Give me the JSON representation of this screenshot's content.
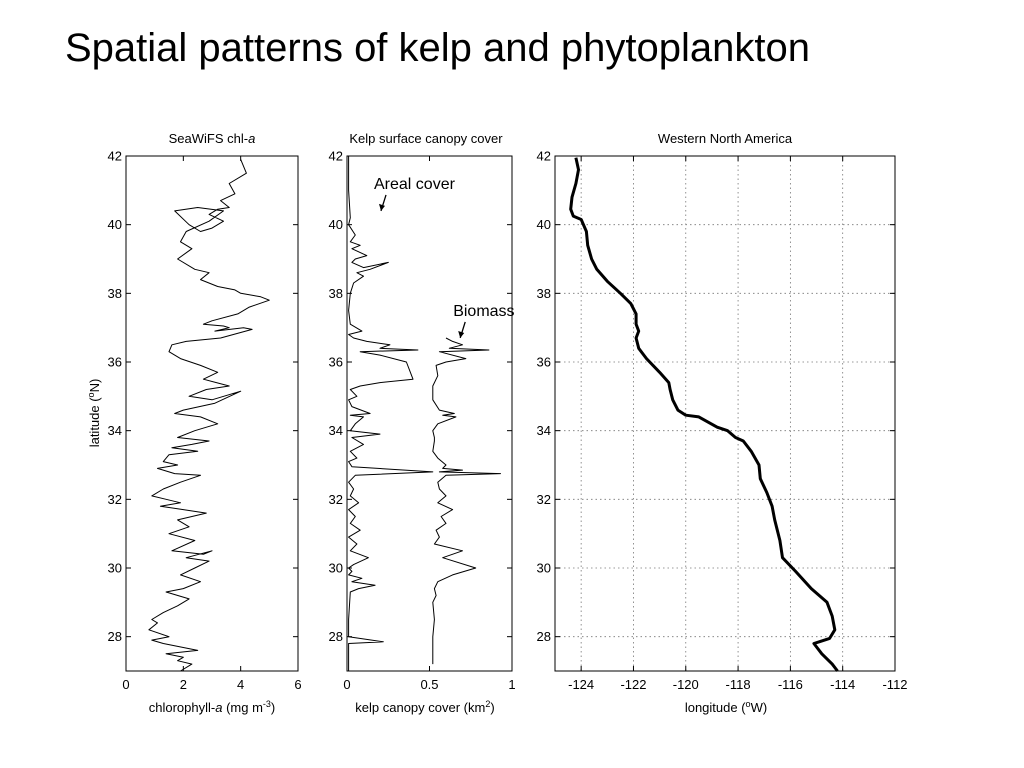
{
  "slide_title": "Spatial patterns of kelp and phytoplankton",
  "chart_data": [
    {
      "type": "line",
      "title": "SeaWiFS chl-",
      "title_italic": "a",
      "xlabel": "chlorophyll-",
      "xlabel_italic": "a",
      "xlabel_unit_pre": " (mg m",
      "xlabel_unit_sup": "-3",
      "xlabel_unit_post": ")",
      "ylabel": "latitude (",
      "ylabel_sup": "o",
      "ylabel_post": "N)",
      "xlim": [
        0,
        6
      ],
      "ylim": [
        27,
        42
      ],
      "xticks": [
        "0",
        "2",
        "4",
        "6"
      ],
      "yticks": [
        "28",
        "30",
        "32",
        "34",
        "36",
        "38",
        "40",
        "42"
      ],
      "grid": false,
      "series": [
        {
          "x": [
            4.0,
            4.2,
            3.6,
            3.8,
            3.3,
            3.6,
            3.2,
            2.9,
            3.4,
            3.0,
            2.6,
            2.2,
            1.7,
            2.5,
            3.4,
            2.9,
            2.1,
            1.9,
            2.3,
            1.8,
            2.4,
            2.9,
            2.6,
            3.2,
            3.8,
            4.0,
            4.7,
            5.0,
            4.3,
            3.9,
            3.0,
            2.7,
            3.4,
            3.6,
            3.1,
            4.1,
            4.4,
            3.3,
            2.1,
            1.6,
            1.5,
            1.9,
            2.6,
            3.2,
            2.7,
            3.6,
            2.8,
            2.2,
            3.0,
            4.0,
            3.1,
            2.0,
            1.7,
            2.6,
            3.2,
            2.4,
            1.8,
            2.9,
            2.3,
            1.6,
            2.5,
            1.5,
            1.3,
            1.8,
            1.1,
            1.7,
            2.6,
            1.9,
            1.3,
            0.9,
            1.4,
            1.9,
            1.2,
            2.0,
            2.8,
            1.8,
            2.2,
            1.5,
            2.4,
            1.6,
            2.7,
            3.0,
            2.1,
            2.9,
            2.4,
            1.9,
            2.6,
            2.0,
            1.4,
            2.2,
            1.8,
            1.3,
            0.9,
            1.1,
            0.8,
            1.5,
            0.9,
            1.3,
            2.5,
            1.4,
            2.0,
            1.8,
            2.3,
            1.9
          ],
          "y": [
            41.9,
            41.5,
            41.2,
            40.9,
            40.7,
            40.5,
            40.45,
            40.3,
            40.1,
            39.9,
            39.8,
            40.0,
            40.4,
            40.5,
            40.4,
            40.1,
            39.8,
            39.5,
            39.3,
            39.0,
            38.7,
            38.6,
            38.4,
            38.2,
            38.1,
            38.0,
            37.9,
            37.8,
            37.6,
            37.4,
            37.2,
            37.1,
            37.05,
            37.0,
            36.9,
            37.0,
            36.95,
            36.7,
            36.6,
            36.5,
            36.3,
            36.1,
            35.9,
            35.7,
            35.5,
            35.3,
            35.2,
            35.0,
            34.9,
            35.15,
            34.8,
            34.6,
            34.5,
            34.4,
            34.2,
            34.0,
            33.8,
            33.7,
            33.6,
            33.5,
            33.4,
            33.3,
            33.1,
            33.0,
            32.9,
            32.75,
            32.7,
            32.5,
            32.3,
            32.1,
            32.0,
            31.9,
            31.8,
            31.7,
            31.6,
            31.4,
            31.2,
            31.0,
            30.8,
            30.5,
            30.4,
            30.5,
            30.3,
            30.2,
            30.0,
            29.8,
            29.6,
            29.4,
            29.3,
            29.1,
            28.9,
            28.7,
            28.5,
            28.4,
            28.2,
            28.0,
            27.9,
            27.8,
            27.6,
            27.5,
            27.4,
            27.3,
            27.2,
            27.0
          ]
        }
      ]
    },
    {
      "type": "line",
      "title": "Kelp surface canopy cover",
      "xlabel": "kelp canopy cover (km",
      "xlabel_sup": "2",
      "xlabel_post": ")",
      "xlim": [
        0,
        1
      ],
      "ylim": [
        27,
        42
      ],
      "xticks": [
        "0",
        "0.5",
        "1"
      ],
      "yticks": [
        "28",
        "30",
        "32",
        "34",
        "36",
        "38",
        "40",
        "42"
      ],
      "grid": false,
      "annotations": [
        {
          "text": "Areal cover",
          "x": 0.2,
          "y": 40.4
        },
        {
          "text": "Biomass",
          "x": 0.68,
          "y": 36.7
        }
      ],
      "series": [
        {
          "name": "Areal cover",
          "x": [
            0.01,
            0.01,
            0.02,
            0.01,
            0.05,
            0.02,
            0.08,
            0.03,
            0.12,
            0.05,
            0.03,
            0.1,
            0.25,
            0.14,
            0.06,
            0.1,
            0.04,
            0.02,
            0.01,
            0.02,
            0.09,
            0.01,
            0.04,
            0.12,
            0.26,
            0.2,
            0.43,
            0.08,
            0.2,
            0.36,
            0.4,
            0.2,
            0.08,
            0.02,
            0.06,
            0.01,
            0.03,
            0.14,
            0.02,
            0.1,
            0.05,
            0.02,
            0.2,
            0.03,
            0.1,
            0.02,
            0.06,
            0.01,
            0.03,
            0.52,
            0.05,
            0.01,
            0.04,
            0.02,
            0.07,
            0.01,
            0.05,
            0.02,
            0.08,
            0.01,
            0.06,
            0.02,
            0.13,
            0.04,
            0.01,
            0.03,
            0.01,
            0.09,
            0.03,
            0.17,
            0.07,
            0.02,
            0.01,
            0.01,
            0.22,
            0.01,
            0.01
          ],
          "y": [
            42.0,
            41.0,
            40.2,
            40.0,
            39.7,
            39.5,
            39.4,
            39.3,
            39.1,
            39.0,
            38.9,
            38.75,
            38.9,
            38.7,
            38.6,
            38.5,
            38.3,
            38.0,
            37.5,
            37.1,
            36.9,
            36.8,
            36.7,
            36.6,
            36.5,
            36.4,
            36.35,
            36.3,
            36.2,
            36.0,
            35.5,
            35.4,
            35.3,
            35.2,
            35.0,
            34.9,
            34.7,
            34.5,
            34.45,
            34.4,
            34.2,
            34.0,
            33.9,
            33.8,
            33.6,
            33.4,
            33.2,
            33.1,
            32.95,
            32.8,
            32.7,
            32.5,
            32.3,
            32.1,
            31.9,
            31.7,
            31.5,
            31.3,
            31.1,
            30.9,
            30.7,
            30.5,
            30.3,
            30.1,
            30.0,
            29.9,
            29.8,
            29.7,
            29.6,
            29.5,
            29.4,
            29.3,
            28.5,
            28.0,
            27.85,
            27.8,
            27.0
          ]
        },
        {
          "name": "Biomass",
          "x": [
            0.6,
            0.64,
            0.7,
            0.62,
            0.86,
            0.56,
            0.72,
            0.6,
            0.54,
            0.55,
            0.52,
            0.52,
            0.56,
            0.65,
            0.58,
            0.66,
            0.55,
            0.52,
            0.53,
            0.53,
            0.52,
            0.55,
            0.6,
            0.58,
            0.7,
            0.56,
            0.93,
            0.6,
            0.55,
            0.56,
            0.6,
            0.55,
            0.64,
            0.57,
            0.6,
            0.54,
            0.56,
            0.53,
            0.7,
            0.58,
            0.78,
            0.64,
            0.55,
            0.53,
            0.54,
            0.52,
            0.53,
            0.52,
            0.52
          ],
          "y": [
            36.7,
            36.6,
            36.5,
            36.4,
            36.35,
            36.3,
            36.1,
            36.0,
            35.9,
            35.6,
            35.3,
            34.9,
            34.6,
            34.5,
            34.45,
            34.4,
            34.2,
            34.0,
            33.8,
            33.7,
            33.4,
            33.2,
            33.0,
            32.9,
            32.85,
            32.8,
            32.75,
            32.7,
            32.5,
            32.3,
            32.1,
            31.9,
            31.7,
            31.5,
            31.3,
            31.1,
            30.9,
            30.7,
            30.5,
            30.3,
            30.0,
            29.8,
            29.6,
            29.4,
            29.2,
            29.0,
            28.5,
            28.0,
            27.2
          ]
        }
      ]
    },
    {
      "type": "line",
      "title": "Western North America",
      "xlabel": "longitude (",
      "xlabel_sup": "o",
      "xlabel_post": "W)",
      "xlim": [
        -125,
        -112
      ],
      "ylim": [
        27,
        42
      ],
      "xticks": [
        "-124",
        "-122",
        "-120",
        "-118",
        "-116",
        "-114",
        "-112"
      ],
      "yticks": [
        "28",
        "30",
        "32",
        "34",
        "36",
        "38",
        "40",
        "42"
      ],
      "grid": true,
      "series": [
        {
          "x": [
            -124.2,
            -124.1,
            -124.2,
            -124.35,
            -124.4,
            -124.3,
            -124.0,
            -123.8,
            -123.75,
            -123.6,
            -123.4,
            -123.0,
            -122.5,
            -122.1,
            -121.9,
            -121.9,
            -121.8,
            -121.9,
            -121.8,
            -121.5,
            -121.0,
            -120.65,
            -120.6,
            -120.5,
            -120.3,
            -120.0,
            -119.5,
            -118.8,
            -118.4,
            -118.1,
            -117.8,
            -117.5,
            -117.2,
            -117.15,
            -116.9,
            -116.7,
            -116.6,
            -116.4,
            -116.3,
            -115.8,
            -115.2,
            -114.6,
            -114.4,
            -114.3,
            -114.5,
            -114.9,
            -115.1,
            -114.8,
            -114.4,
            -114.2
          ],
          "y": [
            41.95,
            41.6,
            41.2,
            40.8,
            40.45,
            40.25,
            40.15,
            39.8,
            39.4,
            39.0,
            38.7,
            38.35,
            38.0,
            37.7,
            37.4,
            37.1,
            36.9,
            36.7,
            36.4,
            36.1,
            35.7,
            35.4,
            35.2,
            34.9,
            34.6,
            34.45,
            34.4,
            34.1,
            34.0,
            33.8,
            33.7,
            33.4,
            33.0,
            32.6,
            32.2,
            31.8,
            31.4,
            30.8,
            30.3,
            29.9,
            29.4,
            29.0,
            28.6,
            28.2,
            27.95,
            27.85,
            27.8,
            27.5,
            27.2,
            27.0
          ]
        }
      ]
    }
  ]
}
